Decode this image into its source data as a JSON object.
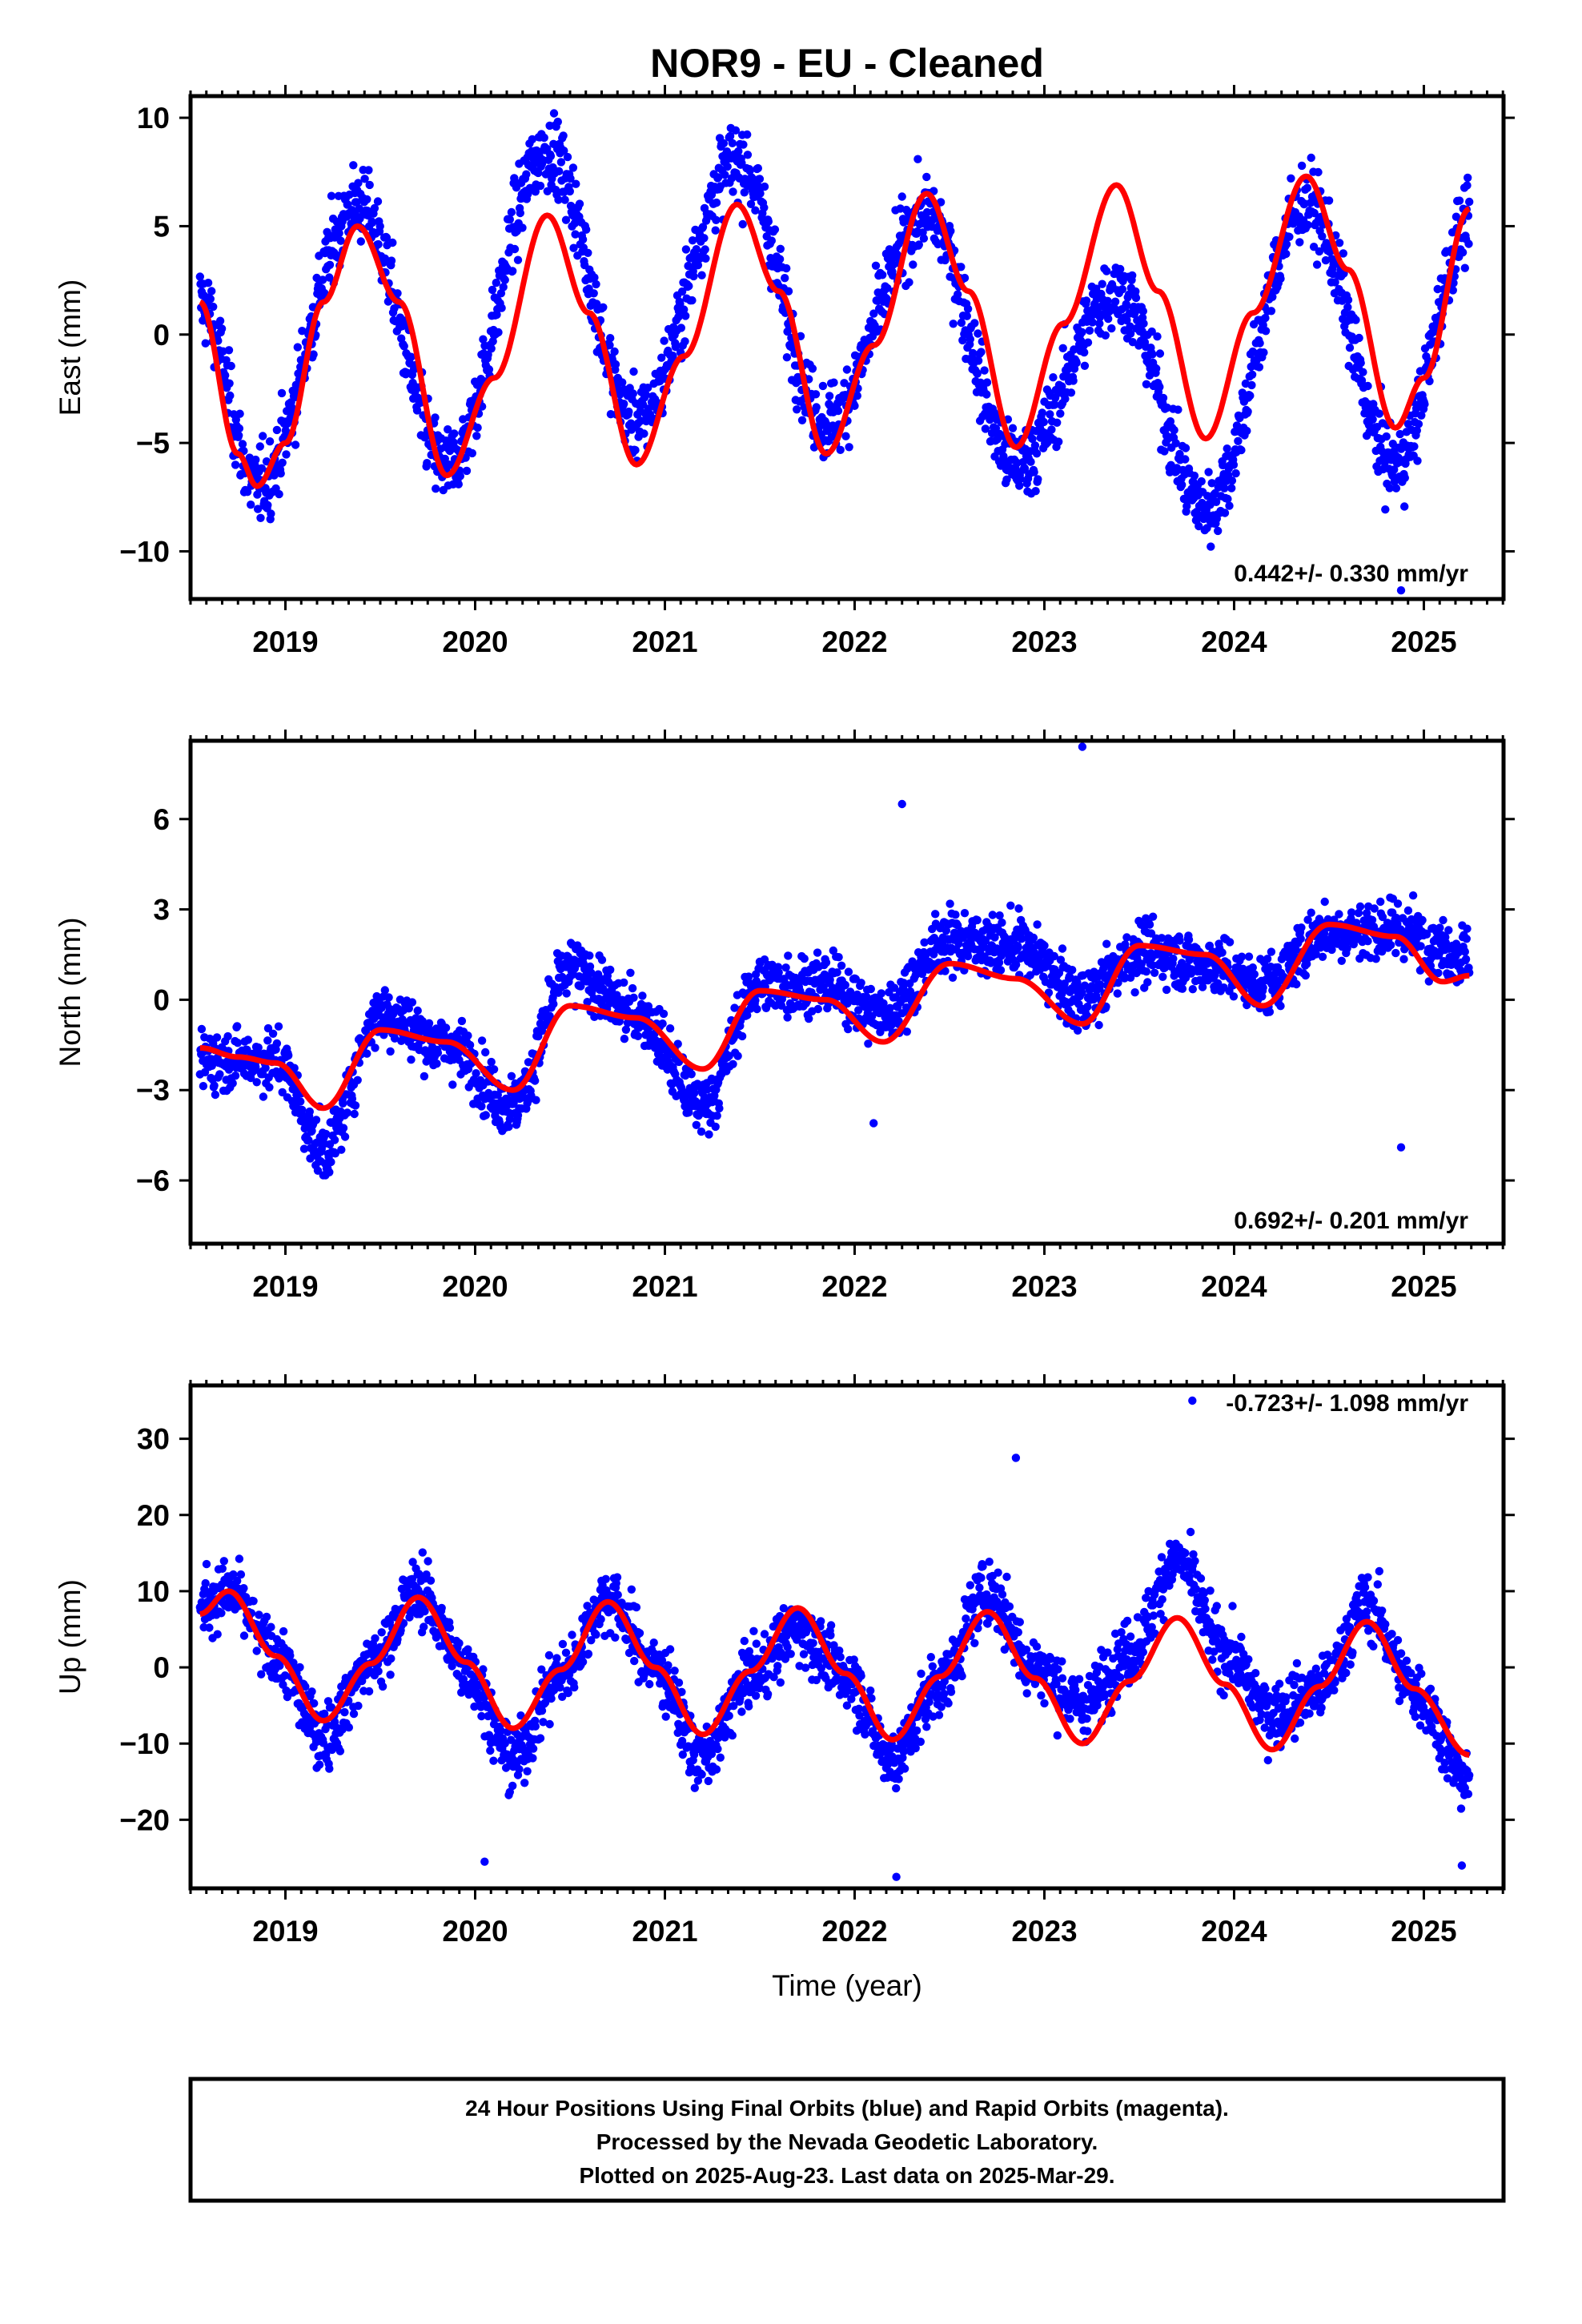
{
  "title": "NOR9  - EU - Cleaned",
  "xlabel": "Time (year)",
  "footer": {
    "line1": "24 Hour Positions Using Final Orbits (blue) and Rapid Orbits (magenta).",
    "line2": "Processed by the Nevada Geodetic Laboratory.",
    "line3": "Plotted on 2025-Aug-23. Last data on 2025-Mar-29."
  },
  "colors": {
    "data": "#0000ff",
    "model": "#ff0000",
    "axis": "#000000"
  },
  "chart_data": [
    {
      "type": "scatter",
      "panel": "east",
      "ylabel": "East (mm)",
      "rate_label": "0.442+/- 0.330 mm/yr",
      "xlim": [
        2018.5,
        2025.42
      ],
      "ylim": [
        -12.2,
        11
      ],
      "yticks": [
        -10,
        -5,
        0,
        5,
        10
      ],
      "xticks": [
        2019,
        2020,
        2021,
        2022,
        2023,
        2024,
        2025
      ],
      "data_start": 2018.55,
      "data_end": 2025.24,
      "model_curve": {
        "name": "model",
        "x": [
          2018.55,
          2018.75,
          2018.85,
          2019.0,
          2019.2,
          2019.38,
          2019.6,
          2019.85,
          2020.1,
          2020.38,
          2020.6,
          2020.85,
          2021.1,
          2021.38,
          2021.6,
          2021.85,
          2022.1,
          2022.38,
          2022.6,
          2022.85,
          2023.1,
          2023.38,
          2023.6,
          2023.85,
          2024.1,
          2024.38,
          2024.6,
          2024.85,
          2025.0,
          2025.24
        ],
        "y": [
          1.5,
          -5.5,
          -7.0,
          -5.0,
          1.5,
          5.0,
          1.5,
          -6.5,
          -2.0,
          5.5,
          1.0,
          -6.0,
          -1.0,
          6.0,
          2.0,
          -5.5,
          -0.5,
          6.5,
          2.0,
          -5.2,
          0.5,
          6.9,
          2.0,
          -4.8,
          1.0,
          7.3,
          3.0,
          -4.3,
          -2.0,
          5.8
        ]
      },
      "observed_trend": {
        "x": [
          2018.55,
          2018.85,
          2019.38,
          2019.85,
          2020.38,
          2020.85,
          2021.38,
          2021.85,
          2022.38,
          2022.85,
          2023.38,
          2023.85,
          2024.38,
          2024.85,
          2025.24
        ],
        "y": [
          1.5,
          -7.0,
          6.0,
          -6.0,
          8.5,
          -4.0,
          8.0,
          -4.0,
          5.5,
          -6.0,
          2.0,
          -8.0,
          6.0,
          -6.0,
          5.0
        ]
      },
      "scatter": 1.6,
      "outliers": [
        {
          "x": 2024.88,
          "y": -11.8
        }
      ]
    },
    {
      "type": "scatter",
      "panel": "north",
      "ylabel": "North (mm)",
      "rate_label": "0.692+/- 0.201 mm/yr",
      "xlim": [
        2018.5,
        2025.42
      ],
      "ylim": [
        -8.1,
        8.6
      ],
      "yticks": [
        -6,
        -3,
        0,
        3,
        6
      ],
      "xticks": [
        2019,
        2020,
        2021,
        2022,
        2023,
        2024,
        2025
      ],
      "data_start": 2018.55,
      "data_end": 2025.24,
      "model_curve": {
        "name": "model",
        "x": [
          2018.55,
          2018.75,
          2018.95,
          2019.2,
          2019.5,
          2019.85,
          2020.2,
          2020.5,
          2020.85,
          2021.2,
          2021.5,
          2021.85,
          2022.15,
          2022.5,
          2022.85,
          2023.2,
          2023.5,
          2023.85,
          2024.15,
          2024.5,
          2024.85,
          2025.1,
          2025.24
        ],
        "y": [
          -1.6,
          -1.9,
          -2.1,
          -3.6,
          -1.0,
          -1.4,
          -3.0,
          -0.2,
          -0.6,
          -2.3,
          0.3,
          0.0,
          -1.4,
          1.2,
          0.7,
          -0.8,
          1.8,
          1.5,
          -0.2,
          2.5,
          2.1,
          0.6,
          0.8
        ]
      },
      "observed_trend": {
        "x": [
          2018.55,
          2018.95,
          2019.2,
          2019.5,
          2019.85,
          2020.2,
          2020.5,
          2020.85,
          2021.2,
          2021.5,
          2021.85,
          2022.15,
          2022.5,
          2022.85,
          2023.2,
          2023.5,
          2023.85,
          2024.15,
          2024.5,
          2024.85,
          2025.24
        ],
        "y": [
          -2.0,
          -2.0,
          -5.0,
          -0.5,
          -1.5,
          -3.5,
          1.0,
          -0.5,
          -3.5,
          0.5,
          0.5,
          -0.5,
          2.0,
          1.8,
          0.0,
          1.6,
          1.2,
          0.5,
          2.3,
          2.3,
          1.5
        ]
      },
      "scatter": 0.9,
      "outliers": [
        {
          "x": 2022.25,
          "y": 6.5
        },
        {
          "x": 2023.2,
          "y": 8.4
        },
        {
          "x": 2024.88,
          "y": -4.9
        },
        {
          "x": 2022.1,
          "y": -4.1
        }
      ]
    },
    {
      "type": "scatter",
      "panel": "up",
      "ylabel": "Up (mm)",
      "rate_label": "-0.723+/- 1.098 mm/yr",
      "xlim": [
        2018.5,
        2025.42
      ],
      "ylim": [
        -29,
        37
      ],
      "yticks": [
        -20,
        -10,
        0,
        10,
        20,
        30
      ],
      "xticks": [
        2019,
        2020,
        2021,
        2022,
        2023,
        2024,
        2025
      ],
      "data_start": 2018.55,
      "data_end": 2025.24,
      "model_curve": {
        "name": "model",
        "x": [
          2018.55,
          2018.7,
          2018.95,
          2019.2,
          2019.45,
          2019.7,
          2019.95,
          2020.2,
          2020.45,
          2020.7,
          2020.95,
          2021.2,
          2021.45,
          2021.7,
          2021.95,
          2022.2,
          2022.45,
          2022.7,
          2022.95,
          2023.2,
          2023.45,
          2023.7,
          2023.95,
          2024.2,
          2024.45,
          2024.7,
          2024.95,
          2025.24
        ],
        "y": [
          7.0,
          10.0,
          1.5,
          -7.0,
          0.5,
          9.2,
          0.7,
          -8.0,
          -0.3,
          8.6,
          0.0,
          -8.8,
          -0.5,
          7.8,
          -0.8,
          -9.5,
          -1.2,
          7.3,
          -1.4,
          -10.0,
          -1.8,
          6.5,
          -2.2,
          -10.8,
          -2.5,
          6.0,
          -2.8,
          -11.5
        ]
      },
      "observed_trend": {
        "x": [
          2018.55,
          2018.7,
          2018.95,
          2019.2,
          2019.45,
          2019.7,
          2019.95,
          2020.2,
          2020.45,
          2020.7,
          2020.95,
          2021.2,
          2021.45,
          2021.7,
          2021.95,
          2022.2,
          2022.45,
          2022.7,
          2022.95,
          2023.2,
          2023.45,
          2023.7,
          2023.95,
          2024.2,
          2024.45,
          2024.7,
          2024.95,
          2025.24
        ],
        "y": [
          8.0,
          10.0,
          1.5,
          -9.0,
          0.5,
          10.0,
          0.0,
          -12.0,
          -1.0,
          9.0,
          0.0,
          -12.0,
          -1.0,
          5.0,
          -1.0,
          -12.0,
          -2.0,
          10.0,
          0.0,
          -5.0,
          2.0,
          14.0,
          2.0,
          -6.0,
          -3.0,
          8.0,
          -3.0,
          -15.0
        ]
      },
      "scatter": 3.8,
      "outliers": [
        {
          "x": 2022.85,
          "y": 27.5
        },
        {
          "x": 2022.22,
          "y": -27.5
        },
        {
          "x": 2020.05,
          "y": -25.5
        },
        {
          "x": 2025.2,
          "y": -26
        },
        {
          "x": 2023.78,
          "y": 35
        }
      ]
    }
  ]
}
